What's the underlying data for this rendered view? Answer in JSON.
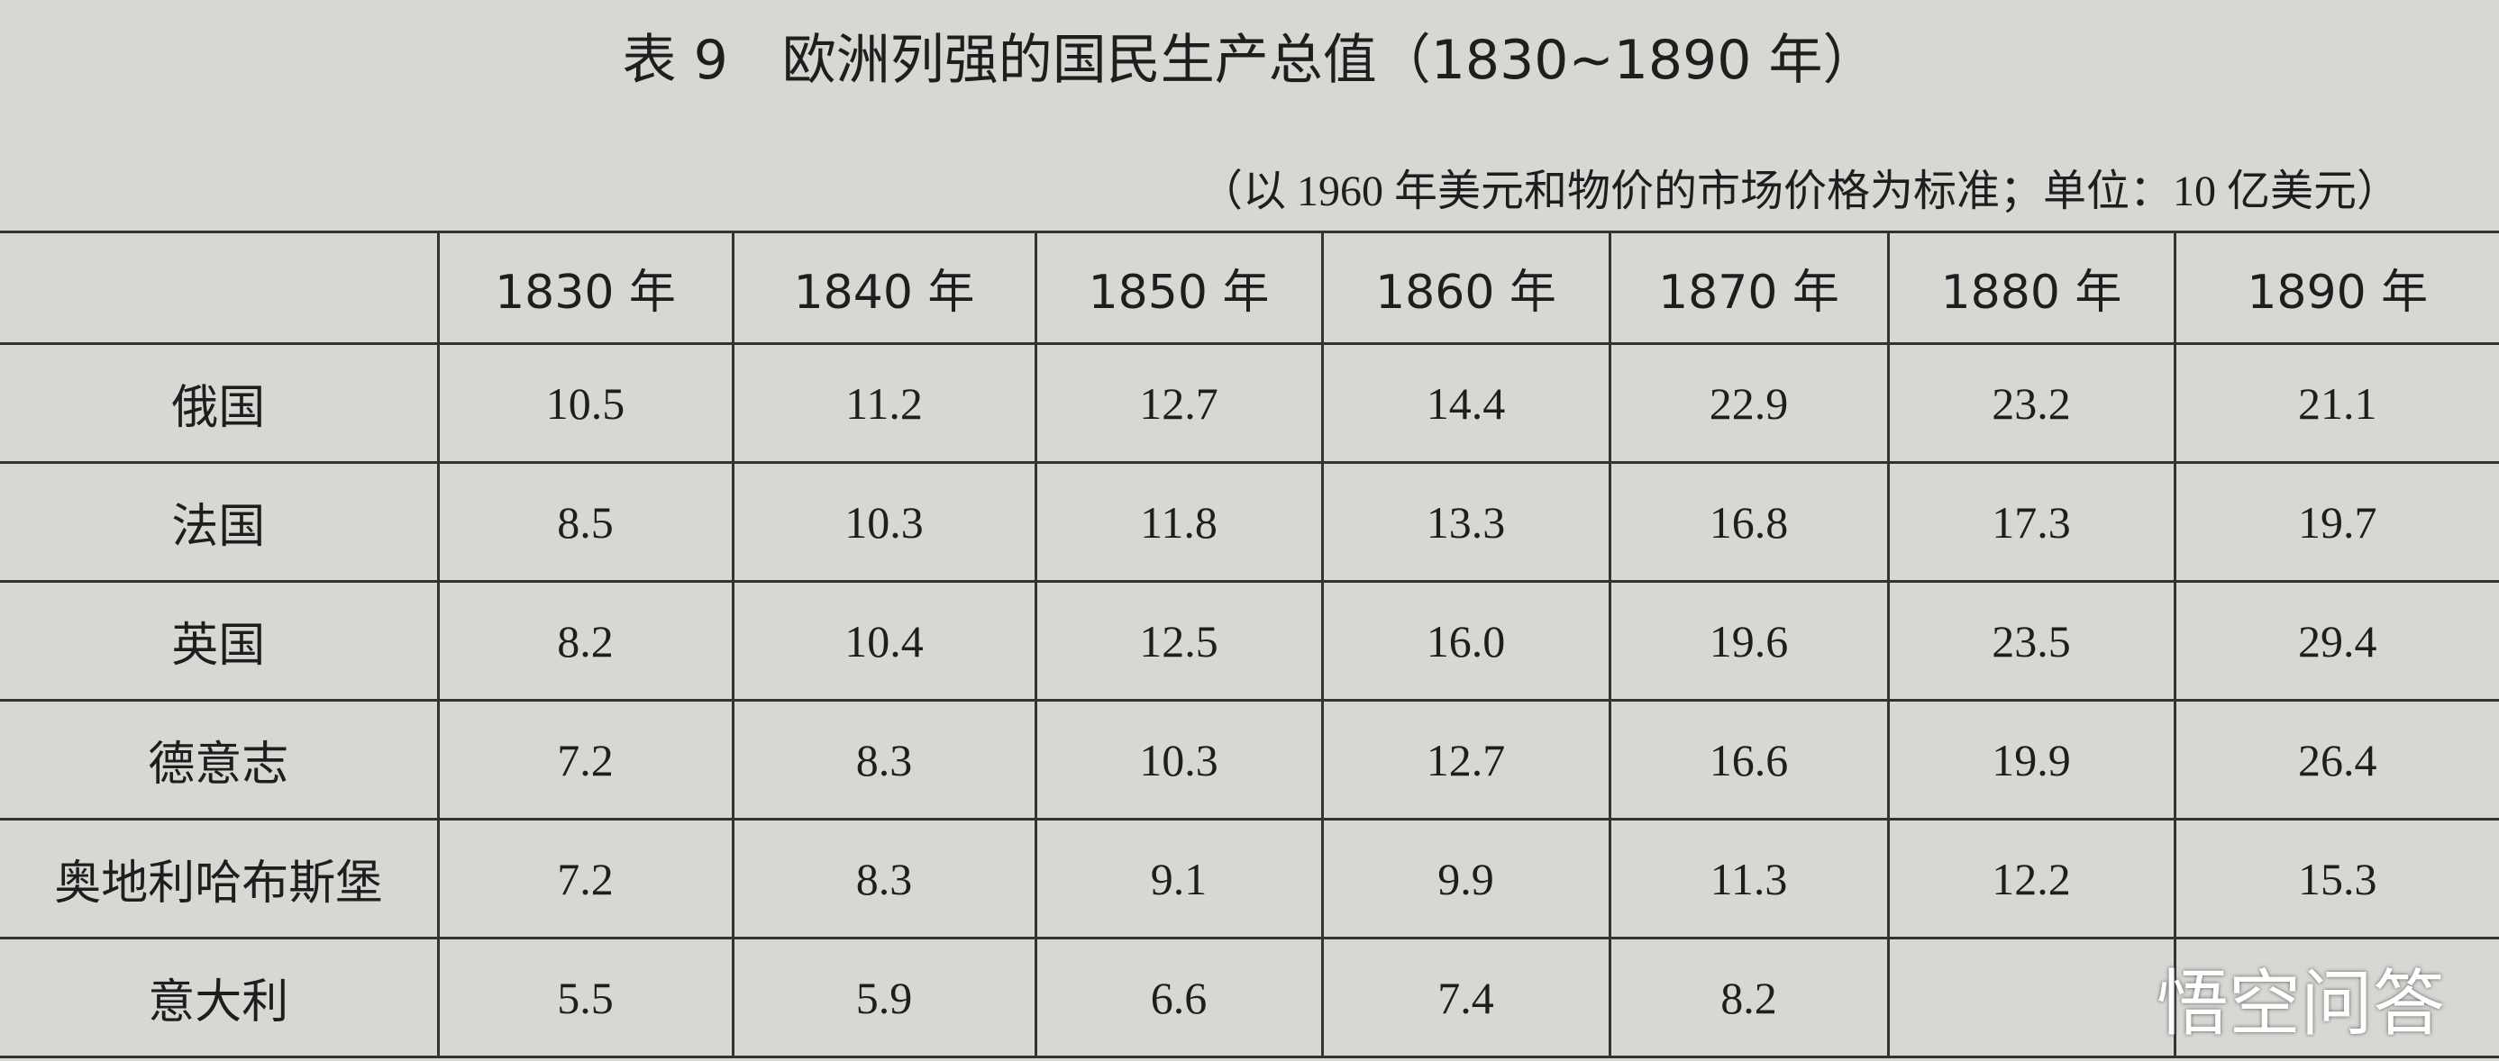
{
  "title": "表 9　欧洲列强的国民生产总值（1830~1890 年）",
  "subtitle": "（以 1960 年美元和物价的市场价格为标准；单位：10 亿美元）",
  "table": {
    "header": [
      "1830 年",
      "1840 年",
      "1850 年",
      "1860 年",
      "1870 年",
      "1880 年",
      "1890 年"
    ],
    "rows": [
      [
        "俄国",
        "10.5",
        "11.2",
        "12.7",
        "14.4",
        "22.9",
        "23.2",
        "21.1"
      ],
      [
        "法国",
        "8.5",
        "10.3",
        "11.8",
        "13.3",
        "16.8",
        "17.3",
        "19.7"
      ],
      [
        "英国",
        "8.2",
        "10.4",
        "12.5",
        "16.0",
        "19.6",
        "23.5",
        "29.4"
      ],
      [
        "德意志",
        "7.2",
        "8.3",
        "10.3",
        "12.7",
        "16.6",
        "19.9",
        "26.4"
      ],
      [
        "奥地利哈布斯堡",
        "7.2",
        "8.3",
        "9.1",
        "9.9",
        "11.3",
        "12.2",
        "15.3"
      ],
      [
        "意大利",
        "5.5",
        "5.9",
        "6.6",
        "7.4",
        "8.2",
        null,
        null
      ]
    ]
  },
  "watermark": "悟空问答"
}
